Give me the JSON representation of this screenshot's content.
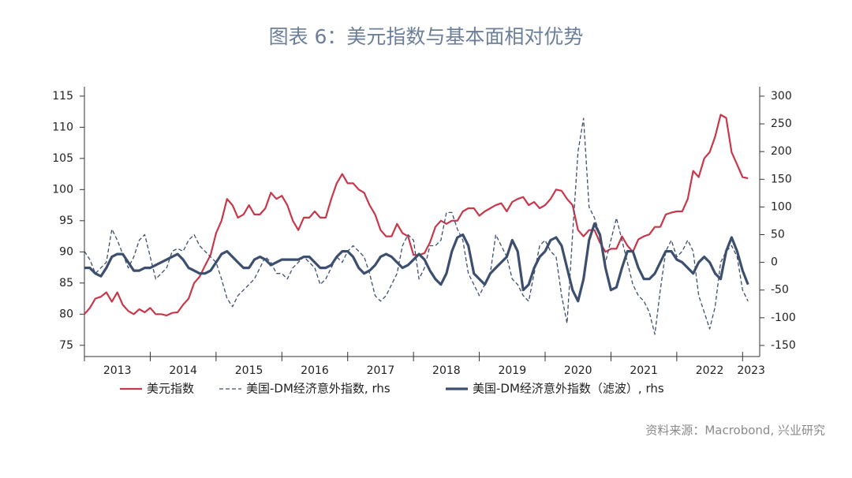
{
  "chart_data": {
    "type": "line",
    "title": "图表 6：美元指数与基本面相对优势",
    "source": "资料来源：Macrobond, 兴业研究",
    "x": [
      2013,
      2013.083,
      2013.167,
      2013.25,
      2013.333,
      2013.417,
      2013.5,
      2013.583,
      2013.667,
      2013.75,
      2013.833,
      2013.917,
      2014,
      2014.083,
      2014.167,
      2014.25,
      2014.333,
      2014.417,
      2014.5,
      2014.583,
      2014.667,
      2014.75,
      2014.833,
      2014.917,
      2015,
      2015.083,
      2015.167,
      2015.25,
      2015.333,
      2015.417,
      2015.5,
      2015.583,
      2015.667,
      2015.75,
      2015.833,
      2015.917,
      2016,
      2016.083,
      2016.167,
      2016.25,
      2016.333,
      2016.417,
      2016.5,
      2016.583,
      2016.667,
      2016.75,
      2016.833,
      2016.917,
      2017,
      2017.083,
      2017.167,
      2017.25,
      2017.333,
      2017.417,
      2017.5,
      2017.583,
      2017.667,
      2017.75,
      2017.833,
      2017.917,
      2018,
      2018.083,
      2018.167,
      2018.25,
      2018.333,
      2018.417,
      2018.5,
      2018.583,
      2018.667,
      2018.75,
      2018.833,
      2018.917,
      2019,
      2019.083,
      2019.167,
      2019.25,
      2019.333,
      2019.417,
      2019.5,
      2019.583,
      2019.667,
      2019.75,
      2019.833,
      2019.917,
      2020,
      2020.083,
      2020.167,
      2020.25,
      2020.333,
      2020.417,
      2020.5,
      2020.583,
      2020.667,
      2020.75,
      2020.833,
      2020.917,
      2021,
      2021.083,
      2021.167,
      2021.25,
      2021.333,
      2021.417,
      2021.5,
      2021.583,
      2021.667,
      2021.75,
      2021.833,
      2021.917,
      2022,
      2022.083,
      2022.167,
      2022.25,
      2022.333,
      2022.417,
      2022.5,
      2022.583,
      2022.667,
      2022.75,
      2022.833,
      2022.917,
      2023,
      2023.083
    ],
    "series": [
      {
        "name": "美元指数",
        "color": "#c8374a",
        "style": "solid",
        "width": 2.2,
        "axis": "y",
        "values": [
          80,
          81,
          82.5,
          82.8,
          83.5,
          82,
          83.5,
          81.5,
          80.5,
          80,
          80.8,
          80.3,
          81,
          80,
          80,
          79.8,
          80.2,
          80.3,
          81.5,
          82.5,
          85,
          86,
          87.8,
          89.5,
          93,
          95,
          98.5,
          97.5,
          95.5,
          96,
          97.5,
          96,
          96,
          97,
          99.5,
          98.5,
          99,
          97.5,
          95,
          93.5,
          95.5,
          95.5,
          96.5,
          95.5,
          95.5,
          98.5,
          101,
          102.5,
          101,
          101,
          100,
          99.5,
          97.5,
          96,
          93.5,
          92.5,
          92.5,
          94.5,
          93,
          92.5,
          89.5,
          89.5,
          89.8,
          91.5,
          94,
          95,
          94.5,
          95,
          95,
          96.5,
          97,
          97,
          95.8,
          96.5,
          97,
          97.5,
          97.8,
          96.5,
          98,
          98.5,
          98.8,
          97.5,
          98,
          97,
          97.5,
          98.5,
          100,
          99.8,
          98.5,
          97.5,
          93.5,
          92.5,
          93.5,
          93.5,
          91.5,
          90,
          90.5,
          90.5,
          92.5,
          91,
          90,
          92,
          92.5,
          92.8,
          94,
          94,
          96,
          96.3,
          96.5,
          96.5,
          98.5,
          103,
          102,
          105,
          106,
          108.5,
          112,
          111.5,
          106,
          104,
          102,
          101.8
        ]
      },
      {
        "name": "美国-DM经济意外指数, rhs",
        "color": "#3d4f6e",
        "style": "dashed",
        "width": 1.3,
        "axis": "y2",
        "values": [
          20,
          5,
          -20,
          -10,
          0,
          60,
          40,
          15,
          -10,
          10,
          40,
          50,
          10,
          -30,
          -20,
          -10,
          20,
          25,
          20,
          40,
          50,
          30,
          20,
          10,
          0,
          -30,
          -65,
          -80,
          -60,
          -50,
          -40,
          -30,
          -10,
          10,
          0,
          -20,
          -20,
          -30,
          -10,
          0,
          10,
          0,
          -10,
          -40,
          -30,
          -10,
          10,
          0,
          20,
          30,
          20,
          10,
          -20,
          -60,
          -70,
          -60,
          -40,
          -20,
          30,
          50,
          40,
          -30,
          -10,
          30,
          30,
          40,
          90,
          90,
          60,
          40,
          -20,
          -40,
          -60,
          -40,
          -20,
          50,
          30,
          10,
          -30,
          -40,
          -60,
          -70,
          -20,
          30,
          40,
          20,
          10,
          -60,
          -110,
          50,
          200,
          260,
          100,
          80,
          50,
          0,
          40,
          80,
          40,
          0,
          -40,
          -60,
          -70,
          -90,
          -130,
          -50,
          20,
          40,
          10,
          20,
          40,
          20,
          -60,
          -90,
          -120,
          -80,
          0,
          20,
          30,
          10,
          -50,
          -70
        ]
      },
      {
        "name": "美国-DM经济意外指数（滤波）, rhs",
        "color": "#3d4f6e",
        "style": "solid",
        "width": 3.2,
        "axis": "y2",
        "values": [
          -10,
          -10,
          -20,
          -25,
          -10,
          10,
          15,
          15,
          0,
          -15,
          -15,
          -10,
          -10,
          -5,
          0,
          5,
          10,
          15,
          5,
          -10,
          -15,
          -20,
          -20,
          -15,
          0,
          15,
          20,
          10,
          0,
          -10,
          -10,
          5,
          10,
          5,
          -5,
          0,
          5,
          5,
          5,
          5,
          10,
          10,
          0,
          -10,
          -10,
          -5,
          10,
          20,
          20,
          10,
          -10,
          -20,
          -15,
          -5,
          10,
          15,
          10,
          0,
          -10,
          -5,
          5,
          15,
          5,
          -15,
          -30,
          -40,
          -20,
          20,
          45,
          50,
          30,
          -20,
          -30,
          -40,
          -20,
          -10,
          0,
          10,
          40,
          20,
          -50,
          -40,
          -10,
          10,
          20,
          40,
          45,
          30,
          -10,
          -50,
          -70,
          -30,
          40,
          70,
          50,
          -10,
          -50,
          -45,
          -10,
          20,
          20,
          -10,
          -30,
          -30,
          -20,
          0,
          20,
          20,
          5,
          0,
          -10,
          -20,
          0,
          10,
          0,
          -20,
          -30,
          20,
          45,
          20,
          -15,
          -40
        ]
      }
    ],
    "xlim": [
      2013,
      2023.26
    ],
    "xticks": [
      2013,
      2014,
      2015,
      2016,
      2017,
      2018,
      2019,
      2020,
      2021,
      2022,
      2023
    ],
    "ylim": [
      73.2,
      116.5
    ],
    "yticks": [
      75,
      80,
      85,
      90,
      95,
      100,
      105,
      110,
      115
    ],
    "y2lim": [
      -170,
      317
    ],
    "y2ticks": [
      -150,
      -100,
      -50,
      0,
      50,
      100,
      150,
      200,
      250,
      300
    ]
  }
}
